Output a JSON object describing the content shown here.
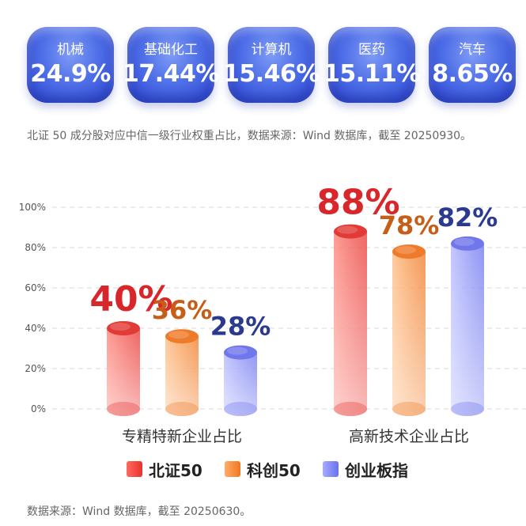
{
  "cards": [
    {
      "name": "机械",
      "pct": "24.9%"
    },
    {
      "name": "基础化工",
      "pct": "17.44%"
    },
    {
      "name": "计算机",
      "pct": "15.46%"
    },
    {
      "name": "医药",
      "pct": "15.11%"
    },
    {
      "name": "汽车",
      "pct": "8.65%"
    }
  ],
  "note_top": "北证 50 成分股对应中信一级行业权重占比，数据来源：Wind 数据库，截至 20250930。",
  "note_bottom": "数据来源：Wind 数据库，截至 20250630。",
  "chart_data": {
    "type": "bar",
    "categories": [
      "专精特新企业占比",
      "高新技术企业占比"
    ],
    "series": [
      {
        "name": "北证50",
        "values": [
          40,
          88
        ],
        "labels": [
          "40%",
          "88%"
        ],
        "color": "#e8322f"
      },
      {
        "name": "科创50",
        "values": [
          36,
          78
        ],
        "labels": [
          "36%",
          "78%"
        ],
        "color": "#f0771f"
      },
      {
        "name": "创业板指",
        "values": [
          28,
          82
        ],
        "labels": [
          "28%",
          "82%"
        ],
        "color": "#7b84f0"
      }
    ],
    "label_colors": [
      "#d8262a",
      "#c65e18",
      "#2b3a8f"
    ],
    "ylim": [
      0,
      100
    ],
    "yticks": [
      0,
      20,
      40,
      60,
      80,
      100
    ],
    "ytick_labels": [
      "0%",
      "20%",
      "40%",
      "60%",
      "80%",
      "100%"
    ],
    "grid": true,
    "legend": "bottom"
  }
}
